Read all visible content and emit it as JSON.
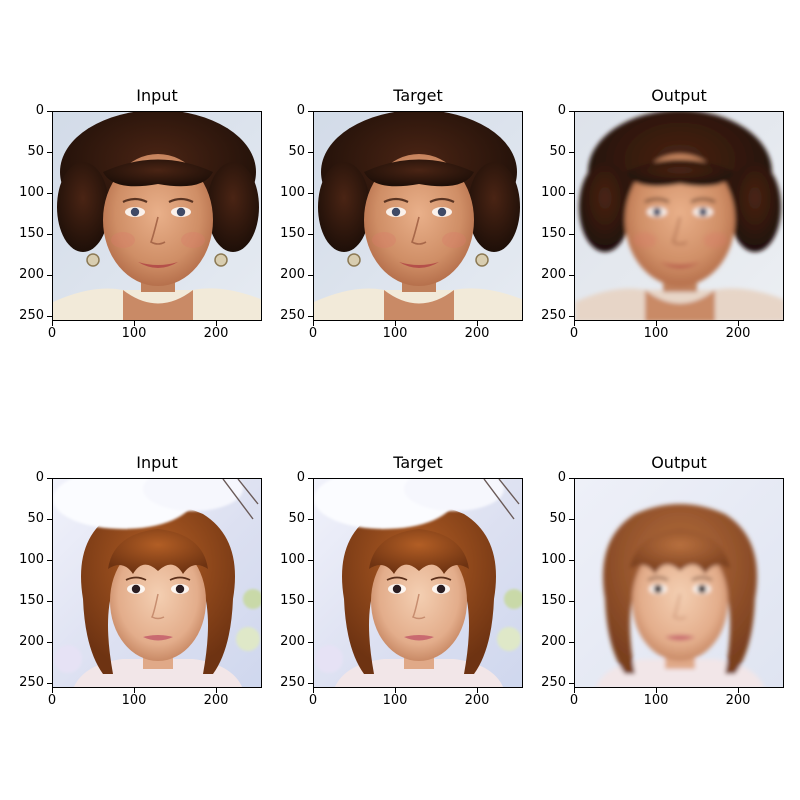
{
  "figure": {
    "rows": [
      {
        "panels": [
          {
            "title": "Input",
            "image_desc": "woman-curly-dark-hair"
          },
          {
            "title": "Target",
            "image_desc": "woman-curly-dark-hair"
          },
          {
            "title": "Output",
            "image_desc": "woman-dark-hair-smooth"
          }
        ]
      },
      {
        "panels": [
          {
            "title": "Input",
            "image_desc": "girl-auburn-bob-blossoms"
          },
          {
            "title": "Target",
            "image_desc": "girl-auburn-bob-blossoms"
          },
          {
            "title": "Output",
            "image_desc": "girl-auburn-bob-smooth"
          }
        ]
      }
    ],
    "yticks": [
      "0",
      "50",
      "100",
      "150",
      "200",
      "250"
    ],
    "xticks": [
      "0",
      "100",
      "200"
    ]
  }
}
